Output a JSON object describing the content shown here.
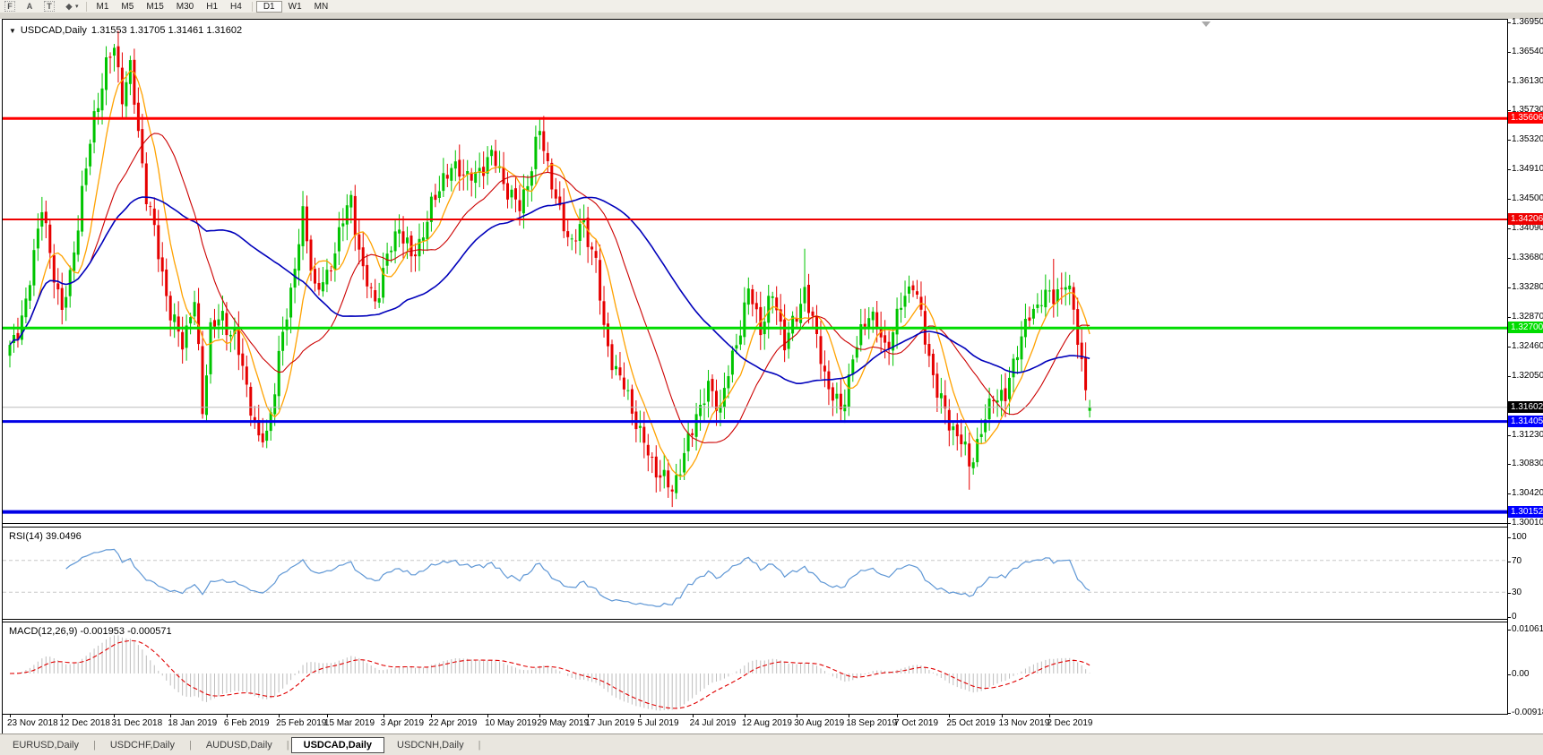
{
  "toolbar": {
    "tools": [
      {
        "name": "fibonacci-tool-icon",
        "glyph": "F"
      },
      {
        "name": "text-tool-icon",
        "glyph": "A"
      },
      {
        "name": "label-tool-icon",
        "glyph": "T"
      },
      {
        "name": "arrows-tool-icon",
        "glyph": "◆"
      }
    ],
    "dropdown_caret": "▾",
    "timeframes": [
      "M1",
      "M5",
      "M15",
      "M30",
      "H1",
      "H4",
      "D1",
      "W1",
      "MN"
    ],
    "active_timeframe": "D1"
  },
  "chart": {
    "title": "USDCAD,Daily",
    "title_marker": "▼",
    "ohlc_text": "1.31553 1.31705 1.31461 1.31602"
  },
  "rsi": {
    "label": "RSI(14) 39.0496"
  },
  "macd": {
    "label": "MACD(12,26,9) -0.001953 -0.000571"
  },
  "tabs": {
    "items": [
      "EURUSD,Daily",
      "USDCHF,Daily",
      "AUDUSD,Daily",
      "USDCAD,Daily",
      "USDCNH,Daily"
    ],
    "active": "USDCAD,Daily",
    "separator": "|"
  },
  "chart_data": {
    "type": "candlestick",
    "symbol": "USDCAD",
    "timeframe": "Daily",
    "current_ohlc": {
      "open": 1.31553,
      "high": 1.31705,
      "low": 1.31461,
      "close": 1.31602
    },
    "bars_count": 270,
    "y_axis": {
      "top": 1.3695,
      "bottom": 1.3001,
      "ticks": [
        "1.36950",
        "1.36540",
        "1.36130",
        "1.35730",
        "1.35320",
        "1.34910",
        "1.34500",
        "1.34090",
        "1.33680",
        "1.33280",
        "1.32870",
        "1.32460",
        "1.32050",
        "1.31230",
        "1.30830",
        "1.30420",
        "1.30010"
      ]
    },
    "x_axis": {
      "labels": [
        {
          "text": "23 Nov 2018",
          "bar": 0
        },
        {
          "text": "12 Dec 2018",
          "bar": 13
        },
        {
          "text": "31 Dec 2018",
          "bar": 26
        },
        {
          "text": "18 Jan 2019",
          "bar": 40
        },
        {
          "text": "6 Feb 2019",
          "bar": 54
        },
        {
          "text": "25 Feb 2019",
          "bar": 67
        },
        {
          "text": "15 Mar 2019",
          "bar": 79
        },
        {
          "text": "3 Apr 2019",
          "bar": 93
        },
        {
          "text": "22 Apr 2019",
          "bar": 105
        },
        {
          "text": "10 May 2019",
          "bar": 119
        },
        {
          "text": "29 May 2019",
          "bar": 132
        },
        {
          "text": "17 Jun 2019",
          "bar": 144
        },
        {
          "text": "5 Jul 2019",
          "bar": 157
        },
        {
          "text": "24 Jul 2019",
          "bar": 170
        },
        {
          "text": "12 Aug 2019",
          "bar": 183
        },
        {
          "text": "30 Aug 2019",
          "bar": 196
        },
        {
          "text": "18 Sep 2019",
          "bar": 209
        },
        {
          "text": "7 Oct 2019",
          "bar": 221
        },
        {
          "text": "25 Oct 2019",
          "bar": 234
        },
        {
          "text": "13 Nov 2019",
          "bar": 247
        },
        {
          "text": "2 Dec 2019",
          "bar": 259
        }
      ]
    },
    "close_anchors": [
      [
        0,
        1.324
      ],
      [
        2,
        1.3262
      ],
      [
        4,
        1.33
      ],
      [
        6,
        1.3385
      ],
      [
        8,
        1.3445
      ],
      [
        10,
        1.3365
      ],
      [
        13,
        1.329
      ],
      [
        15,
        1.3335
      ],
      [
        18,
        1.3468
      ],
      [
        21,
        1.356
      ],
      [
        24,
        1.3628
      ],
      [
        26,
        1.3652
      ],
      [
        28,
        1.3598
      ],
      [
        30,
        1.3636
      ],
      [
        32,
        1.3545
      ],
      [
        34,
        1.3452
      ],
      [
        37,
        1.3368
      ],
      [
        40,
        1.3292
      ],
      [
        43,
        1.3258
      ],
      [
        46,
        1.3304
      ],
      [
        48,
        1.315
      ],
      [
        50,
        1.3268
      ],
      [
        53,
        1.329
      ],
      [
        56,
        1.3262
      ],
      [
        59,
        1.3182
      ],
      [
        62,
        1.3108
      ],
      [
        64,
        1.3128
      ],
      [
        67,
        1.3232
      ],
      [
        70,
        1.3318
      ],
      [
        73,
        1.3418
      ],
      [
        76,
        1.3332
      ],
      [
        79,
        1.3342
      ],
      [
        82,
        1.3398
      ],
      [
        85,
        1.3442
      ],
      [
        88,
        1.3352
      ],
      [
        91,
        1.3312
      ],
      [
        94,
        1.336
      ],
      [
        97,
        1.3408
      ],
      [
        100,
        1.3372
      ],
      [
        104,
        1.342
      ],
      [
        108,
        1.3474
      ],
      [
        112,
        1.3498
      ],
      [
        116,
        1.3478
      ],
      [
        120,
        1.3504
      ],
      [
        124,
        1.3468
      ],
      [
        127,
        1.344
      ],
      [
        130,
        1.3488
      ],
      [
        132,
        1.3538
      ],
      [
        134,
        1.3498
      ],
      [
        137,
        1.3432
      ],
      [
        140,
        1.339
      ],
      [
        143,
        1.3404
      ],
      [
        146,
        1.3364
      ],
      [
        148,
        1.327
      ],
      [
        151,
        1.3214
      ],
      [
        154,
        1.3168
      ],
      [
        157,
        1.312
      ],
      [
        160,
        1.3092
      ],
      [
        163,
        1.306
      ],
      [
        165,
        1.3042
      ],
      [
        168,
        1.3086
      ],
      [
        171,
        1.3158
      ],
      [
        174,
        1.319
      ],
      [
        177,
        1.3156
      ],
      [
        180,
        1.3222
      ],
      [
        184,
        1.333
      ],
      [
        187,
        1.3272
      ],
      [
        190,
        1.3308
      ],
      [
        193,
        1.3252
      ],
      [
        196,
        1.3292
      ],
      [
        198,
        1.333
      ],
      [
        201,
        1.3246
      ],
      [
        204,
        1.3182
      ],
      [
        207,
        1.3162
      ],
      [
        210,
        1.323
      ],
      [
        214,
        1.3288
      ],
      [
        218,
        1.3246
      ],
      [
        222,
        1.3304
      ],
      [
        225,
        1.333
      ],
      [
        228,
        1.3252
      ],
      [
        231,
        1.319
      ],
      [
        234,
        1.3142
      ],
      [
        237,
        1.3106
      ],
      [
        239,
        1.3076
      ],
      [
        242,
        1.313
      ],
      [
        245,
        1.3186
      ],
      [
        248,
        1.3166
      ],
      [
        251,
        1.324
      ],
      [
        254,
        1.329
      ],
      [
        257,
        1.332
      ],
      [
        260,
        1.3306
      ],
      [
        263,
        1.333
      ],
      [
        265,
        1.3296
      ],
      [
        267,
        1.323
      ],
      [
        269,
        1.31602
      ]
    ],
    "extreme_overrides": [
      [
        26,
        "high",
        1.3664
      ],
      [
        132,
        "high",
        1.35605
      ],
      [
        165,
        "low",
        1.3022
      ],
      [
        198,
        "high",
        1.338
      ],
      [
        239,
        "low",
        1.3046
      ],
      [
        260,
        "high",
        1.3366
      ]
    ],
    "candle_colors": {
      "bull": "#00C400",
      "bear": "#E60000"
    },
    "moving_averages": [
      {
        "period": 8,
        "color": "#FFA200",
        "width": 1.3
      },
      {
        "period": 21,
        "color": "#CC0000",
        "width": 1.1
      },
      {
        "period": 50,
        "color": "#0000BB",
        "width": 1.6
      }
    ],
    "levels": [
      {
        "label": "1.35606",
        "price": 1.35606,
        "color": "#FF0000",
        "thickness": 3,
        "tag_bg": "#FF0000"
      },
      {
        "label": "1.34206",
        "price": 1.34206,
        "color": "#EE0000",
        "thickness": 2,
        "tag_bg": "#EE0000"
      },
      {
        "label": "1.32700",
        "price": 1.327,
        "color": "#00DC00",
        "thickness": 3,
        "tag_bg": "#00DC00"
      },
      {
        "label": "1.31405",
        "price": 1.31405,
        "color": "#0000E6",
        "thickness": 3,
        "tag_bg": "#0000FF"
      },
      {
        "label": "1.30152",
        "price": 1.30152,
        "color": "#0000E6",
        "thickness": 4,
        "tag_bg": "#0000FF"
      }
    ],
    "current_price_line": {
      "label": "1.31602",
      "price": 1.31602,
      "color": "#BBBBBB",
      "tag_bg": "#000000"
    },
    "indicators": [
      {
        "type": "RSI",
        "period": 14,
        "current": 39.0496,
        "overbought": 70,
        "oversold": 30,
        "range": [
          0,
          100
        ],
        "axis_ticks": [
          "100",
          "70",
          "30",
          "0"
        ],
        "line_color": "#5F97D5",
        "level_color": "#C8C8C8"
      },
      {
        "type": "MACD",
        "fast": 12,
        "slow": 26,
        "signal_period": 9,
        "macd_current": -0.001953,
        "signal_current": -0.000571,
        "axis_ticks": [
          "0.010615",
          "0.00",
          "-0.00918"
        ],
        "axis_values": [
          0.010615,
          0,
          -0.00918
        ],
        "histogram_color": "#BDBDBD",
        "signal_color": "#E00000"
      }
    ]
  }
}
